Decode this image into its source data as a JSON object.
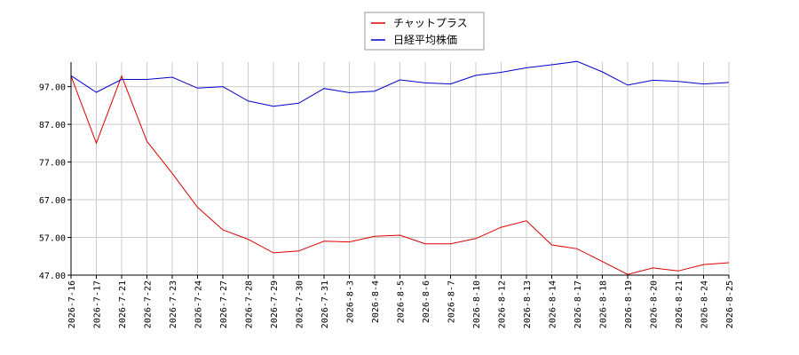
{
  "chart_data": {
    "type": "line",
    "title": "",
    "xlabel": "",
    "ylabel": "",
    "categories": [
      "2026-7-16",
      "2026-7-17",
      "2026-7-21",
      "2026-7-22",
      "2026-7-23",
      "2026-7-24",
      "2026-7-27",
      "2026-7-28",
      "2026-7-29",
      "2026-7-30",
      "2026-7-31",
      "2026-8-3",
      "2026-8-4",
      "2026-8-5",
      "2026-8-6",
      "2026-8-7",
      "2026-8-10",
      "2026-8-12",
      "2026-8-13",
      "2026-8-14",
      "2026-8-17",
      "2026-8-18",
      "2026-8-19",
      "2026-8-20",
      "2026-8-21",
      "2026-8-24",
      "2026-8-25"
    ],
    "ylim": [
      47.0,
      103.5
    ],
    "y_ticks": [
      "47.00",
      "57.00",
      "67.00",
      "77.00",
      "87.00",
      "97.00"
    ],
    "grid": true,
    "legend_position": "top-center",
    "series": [
      {
        "name": "チャットプラス",
        "color": "#dd0000",
        "values": [
          99.8,
          82.0,
          99.8,
          82.5,
          74.0,
          65.0,
          59.0,
          56.5,
          52.9,
          53.4,
          56.0,
          55.8,
          57.3,
          57.6,
          55.3,
          55.3,
          56.7,
          59.7,
          61.4,
          55.0,
          54.0,
          50.6,
          47.2,
          48.9,
          48.1,
          49.8,
          50.3
        ]
      },
      {
        "name": "日経平均株価",
        "color": "#0000cc",
        "values": [
          99.9,
          95.5,
          98.9,
          98.9,
          99.5,
          96.6,
          97.0,
          93.2,
          91.8,
          92.6,
          96.5,
          95.4,
          95.8,
          98.8,
          98.0,
          97.7,
          100.0,
          100.8,
          102.0,
          102.8,
          103.7,
          100.9,
          97.4,
          98.7,
          98.4,
          97.7,
          98.1
        ]
      }
    ]
  }
}
